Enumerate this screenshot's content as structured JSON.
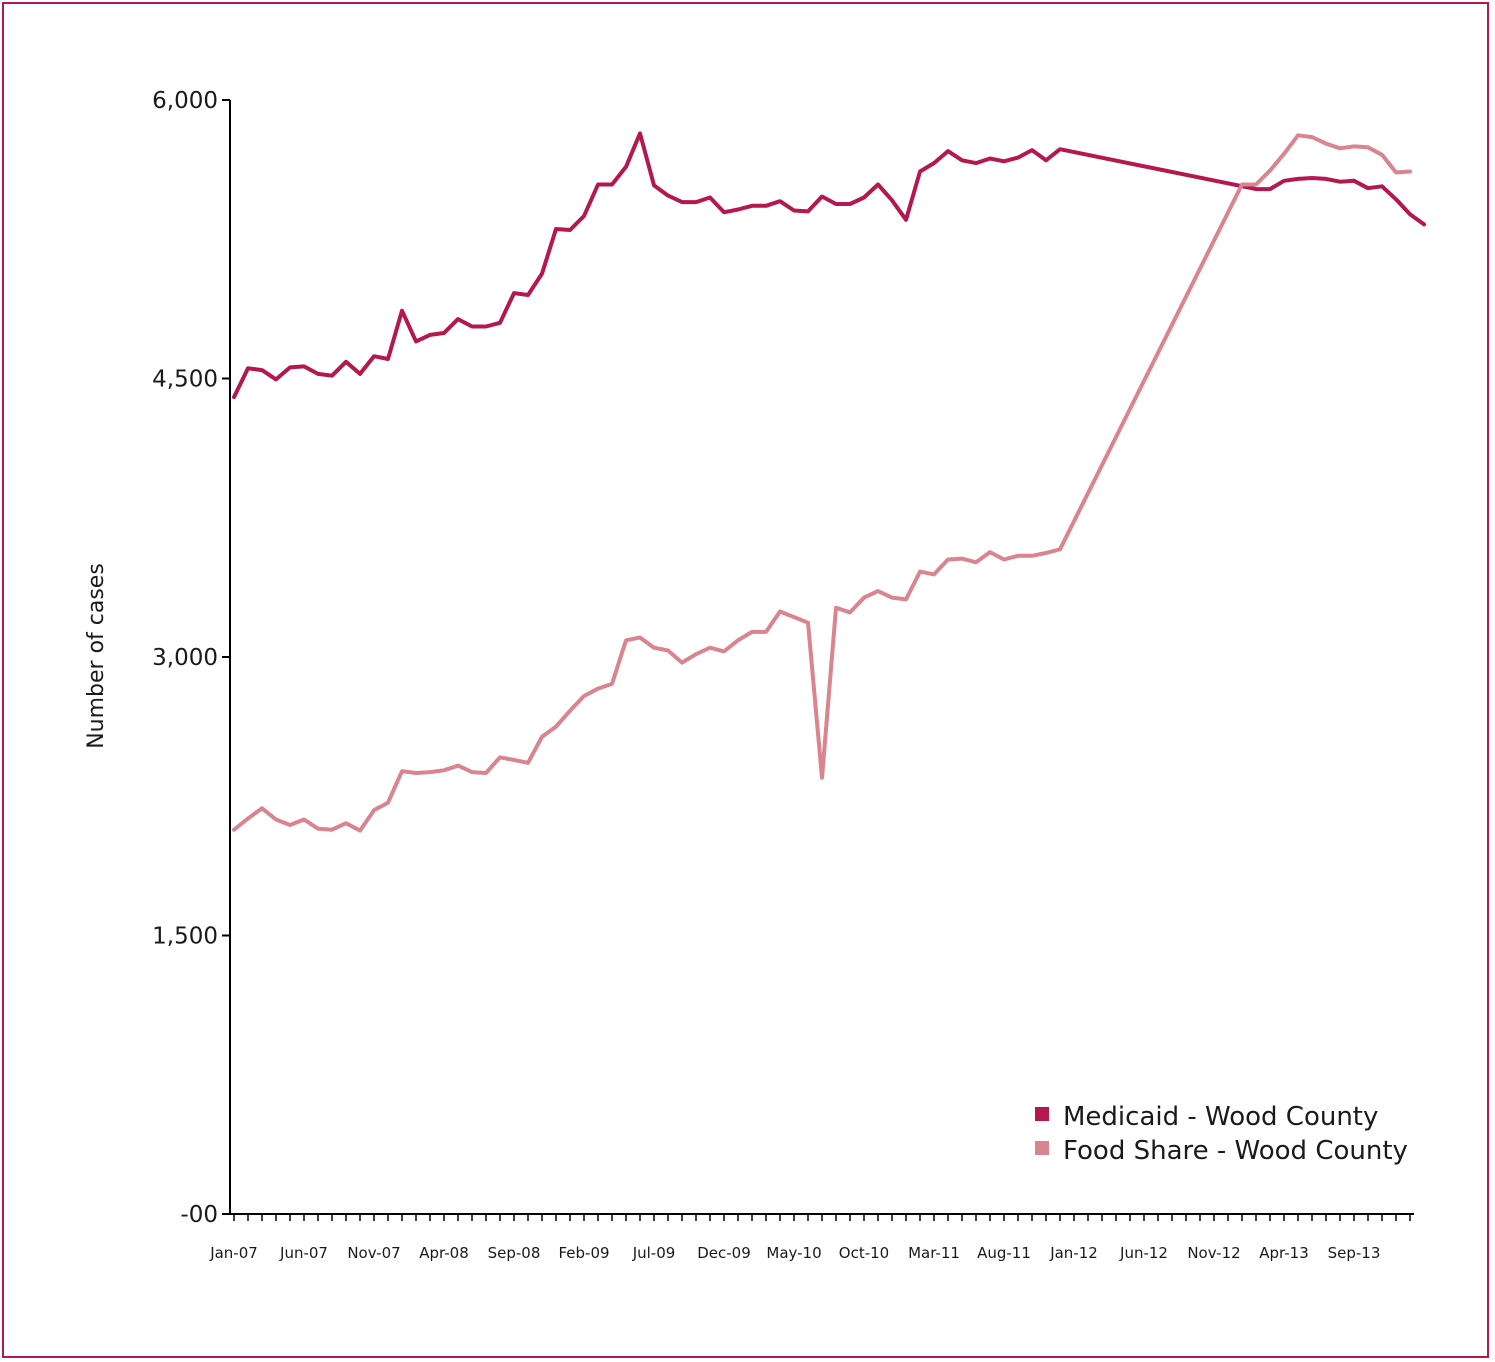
{
  "chart_data": {
    "type": "line",
    "title": "",
    "xlabel": "",
    "ylabel": "Number of cases",
    "ylim": [
      0,
      6000
    ],
    "y_ticks": [
      0,
      1500,
      3000,
      4500,
      6000
    ],
    "y_tick_labels": [
      "-00",
      "1,500",
      "3,000",
      "4,500",
      "6,000"
    ],
    "grid": false,
    "legend_position": "bottom-right",
    "x_tick_labels": [
      "Jan-07",
      "Jun-07",
      "Nov-07",
      "Apr-08",
      "Sep-08",
      "Feb-09",
      "Jul-09",
      "Dec-09",
      "May-10",
      "Oct-10",
      "Mar-11",
      "Aug-11",
      "Jan-12",
      "Jun-12",
      "Nov-12",
      "Apr-13",
      "Sep-13"
    ],
    "x_tick_label_every": 5,
    "x_tick_count": 85,
    "series": [
      {
        "name": "Medicaid - Wood County",
        "color": "#b5174f",
        "points": [
          [
            0,
            4400
          ],
          [
            1,
            4555
          ],
          [
            2,
            4545
          ],
          [
            3,
            4495
          ],
          [
            4,
            4560
          ],
          [
            5,
            4565
          ],
          [
            6,
            4525
          ],
          [
            7,
            4515
          ],
          [
            8,
            4590
          ],
          [
            9,
            4525
          ],
          [
            10,
            4620
          ],
          [
            11,
            4605
          ],
          [
            12,
            4865
          ],
          [
            13,
            4700
          ],
          [
            14,
            4735
          ],
          [
            15,
            4745
          ],
          [
            16,
            4820
          ],
          [
            17,
            4780
          ],
          [
            18,
            4780
          ],
          [
            19,
            4800
          ],
          [
            20,
            4960
          ],
          [
            21,
            4950
          ],
          [
            22,
            5065
          ],
          [
            23,
            5305
          ],
          [
            24,
            5300
          ],
          [
            25,
            5375
          ],
          [
            26,
            5545
          ],
          [
            27,
            5545
          ],
          [
            28,
            5640
          ],
          [
            29,
            5820
          ],
          [
            30,
            5540
          ],
          [
            31,
            5485
          ],
          [
            32,
            5450
          ],
          [
            33,
            5450
          ],
          [
            34,
            5475
          ],
          [
            35,
            5395
          ],
          [
            36,
            5410
          ],
          [
            37,
            5430
          ],
          [
            38,
            5430
          ],
          [
            39,
            5455
          ],
          [
            40,
            5405
          ],
          [
            41,
            5400
          ],
          [
            42,
            5480
          ],
          [
            43,
            5440
          ],
          [
            44,
            5440
          ],
          [
            45,
            5475
          ],
          [
            46,
            5545
          ],
          [
            47,
            5460
          ],
          [
            48,
            5355
          ],
          [
            49,
            5615
          ],
          [
            50,
            5660
          ],
          [
            51,
            5725
          ],
          [
            52,
            5675
          ],
          [
            53,
            5660
          ],
          [
            54,
            5685
          ],
          [
            55,
            5670
          ],
          [
            56,
            5690
          ],
          [
            57,
            5730
          ],
          [
            58,
            5675
          ],
          [
            59,
            5735
          ],
          [
            73,
            5520
          ],
          [
            74,
            5520
          ],
          [
            75,
            5565
          ],
          [
            76,
            5575
          ],
          [
            77,
            5580
          ],
          [
            78,
            5575
          ],
          [
            79,
            5560
          ],
          [
            80,
            5565
          ],
          [
            81,
            5525
          ],
          [
            82,
            5535
          ],
          [
            83,
            5465
          ],
          [
            84,
            5385
          ],
          [
            85,
            5330
          ]
        ]
      },
      {
        "name": "Food Share - Wood County",
        "color": "#d9848f",
        "points": [
          [
            0,
            2070
          ],
          [
            1,
            2130
          ],
          [
            2,
            2185
          ],
          [
            3,
            2125
          ],
          [
            4,
            2095
          ],
          [
            5,
            2125
          ],
          [
            6,
            2075
          ],
          [
            7,
            2070
          ],
          [
            8,
            2105
          ],
          [
            9,
            2065
          ],
          [
            10,
            2175
          ],
          [
            11,
            2215
          ],
          [
            12,
            2385
          ],
          [
            13,
            2375
          ],
          [
            14,
            2380
          ],
          [
            15,
            2390
          ],
          [
            16,
            2415
          ],
          [
            17,
            2380
          ],
          [
            18,
            2375
          ],
          [
            19,
            2460
          ],
          [
            20,
            2445
          ],
          [
            21,
            2430
          ],
          [
            22,
            2570
          ],
          [
            23,
            2625
          ],
          [
            24,
            2710
          ],
          [
            25,
            2790
          ],
          [
            26,
            2830
          ],
          [
            27,
            2855
          ],
          [
            28,
            3090
          ],
          [
            29,
            3105
          ],
          [
            30,
            3050
          ],
          [
            31,
            3035
          ],
          [
            32,
            2970
          ],
          [
            33,
            3015
          ],
          [
            34,
            3050
          ],
          [
            35,
            3030
          ],
          [
            36,
            3090
          ],
          [
            37,
            3135
          ],
          [
            38,
            3135
          ],
          [
            39,
            3245
          ],
          [
            40,
            3215
          ],
          [
            41,
            3185
          ],
          [
            42,
            2350
          ],
          [
            43,
            3265
          ],
          [
            44,
            3240
          ],
          [
            45,
            3320
          ],
          [
            46,
            3355
          ],
          [
            47,
            3320
          ],
          [
            48,
            3310
          ],
          [
            49,
            3460
          ],
          [
            50,
            3445
          ],
          [
            51,
            3525
          ],
          [
            52,
            3530
          ],
          [
            53,
            3510
          ],
          [
            54,
            3565
          ],
          [
            55,
            3525
          ],
          [
            56,
            3545
          ],
          [
            57,
            3545
          ],
          [
            58,
            3560
          ],
          [
            59,
            3580
          ],
          [
            72,
            5545
          ],
          [
            73,
            5545
          ],
          [
            74,
            5620
          ],
          [
            75,
            5710
          ],
          [
            76,
            5810
          ],
          [
            77,
            5800
          ],
          [
            78,
            5765
          ],
          [
            79,
            5740
          ],
          [
            80,
            5750
          ],
          [
            81,
            5745
          ],
          [
            82,
            5705
          ],
          [
            83,
            5610
          ],
          [
            84,
            5615
          ]
        ]
      }
    ]
  }
}
